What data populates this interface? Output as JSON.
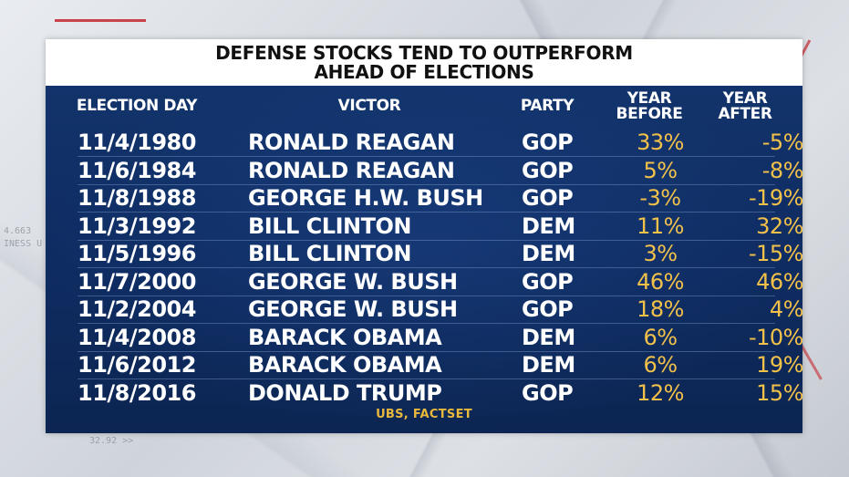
{
  "title": {
    "line1": "DEFENSE STOCKS TEND TO OUTPERFORM",
    "line2": "AHEAD OF ELECTIONS"
  },
  "columns": {
    "election_day": "ELECTION DAY",
    "victor": "VICTOR",
    "party": "PARTY",
    "year_before_1": "YEAR",
    "year_before_2": "BEFORE",
    "year_after_1": "YEAR",
    "year_after_2": "AFTER"
  },
  "rows": [
    {
      "date": "11/4/1980",
      "victor": "RONALD REAGAN",
      "party": "GOP",
      "before": "33%",
      "after": "-5%"
    },
    {
      "date": "11/6/1984",
      "victor": "RONALD REAGAN",
      "party": "GOP",
      "before": "5%",
      "after": "-8%"
    },
    {
      "date": "11/8/1988",
      "victor": "GEORGE H.W. BUSH",
      "party": "GOP",
      "before": "-3%",
      "after": "-19%"
    },
    {
      "date": "11/3/1992",
      "victor": "BILL CLINTON",
      "party": "DEM",
      "before": "11%",
      "after": "32%"
    },
    {
      "date": "11/5/1996",
      "victor": "BILL CLINTON",
      "party": "DEM",
      "before": "3%",
      "after": "-15%"
    },
    {
      "date": "11/7/2000",
      "victor": "GEORGE W. BUSH",
      "party": "GOP",
      "before": "46%",
      "after": "46%"
    },
    {
      "date": "11/2/2004",
      "victor": "GEORGE W. BUSH",
      "party": "GOP",
      "before": "18%",
      "after": "4%"
    },
    {
      "date": "11/4/2008",
      "victor": "BARACK OBAMA",
      "party": "DEM",
      "before": "6%",
      "after": "-10%"
    },
    {
      "date": "11/6/2012",
      "victor": "BARACK OBAMA",
      "party": "DEM",
      "before": "6%",
      "after": "19%"
    },
    {
      "date": "11/8/2016",
      "victor": "DONALD TRUMP",
      "party": "GOP",
      "before": "12%",
      "after": "15%"
    }
  ],
  "source": "UBS, FACTSET",
  "background_text": {
    "ticker1": "4.663",
    "ticker2": "INESS U",
    "ticker3": "32.92 >>"
  },
  "colors": {
    "title_bg": "#ffffff",
    "table_bg": "#12336b",
    "value_gold": "#f2c14a",
    "accent_red": "#c4262e"
  }
}
